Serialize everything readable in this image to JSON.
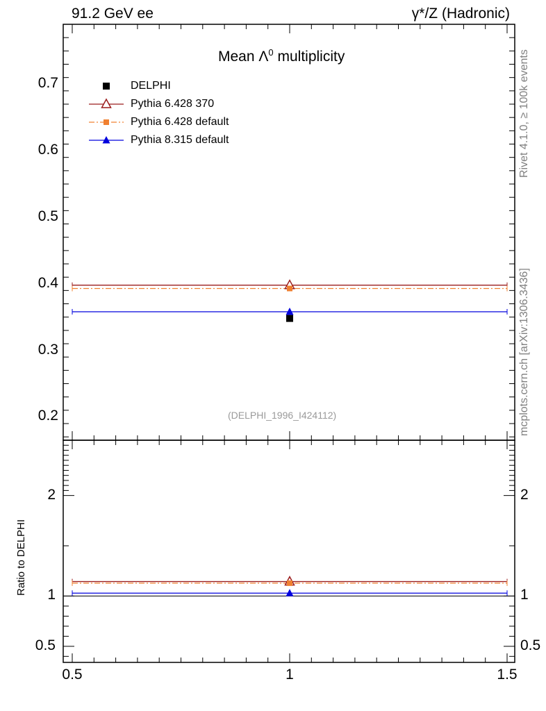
{
  "header": {
    "left": "91.2 GeV ee",
    "right": "γ*/Z (Hadronic)"
  },
  "side_labels": {
    "rivet": "Rivet 4.1.0, ≥ 100k events",
    "source": "mcplots.cern.ch [arXiv:1306.3436]"
  },
  "chart_data": {
    "type": "scatter",
    "title_prefix": "Mean Λ",
    "title_sup": "0",
    "title_suffix": " multiplicity",
    "reference_tag": "(DELPHI_1996_I424112)",
    "xlim": [
      0.5,
      1.5
    ],
    "x_ticks": [
      "0.5",
      "1",
      "1.5"
    ],
    "main": {
      "ylim": [
        0.165,
        0.79
      ],
      "y_ticks": [
        "0.2",
        "0.3",
        "0.4",
        "0.5",
        "0.6",
        "0.7"
      ],
      "data": {
        "name": "DELPHI",
        "x": 1.0,
        "y": 0.348,
        "xerr": [
          0.5,
          1.5
        ],
        "color": "#000000",
        "marker": "square"
      },
      "series": [
        {
          "name": "Pythia 6.428 370",
          "value": 0.398,
          "color": "#9b1c1c",
          "style": "solid",
          "marker": "triangle-open"
        },
        {
          "name": "Pythia 6.428 default",
          "value": 0.393,
          "color": "#f08030",
          "style": "dashdot",
          "marker": "square-small"
        },
        {
          "name": "Pythia 8.315 default",
          "value": 0.358,
          "color": "#0000dd",
          "style": "solid",
          "marker": "triangle"
        }
      ]
    },
    "ratio": {
      "ylabel": "Ratio to DELPHI",
      "ylim": [
        0.34,
        2.55
      ],
      "y_ticks": [
        "0.5",
        "1",
        "2"
      ],
      "reference": 1.0,
      "values": [
        1.144,
        1.128,
        1.029
      ]
    }
  },
  "colors": {
    "axis": "#000000",
    "side_text": "#808080",
    "ref_text": "#9a9a9a"
  }
}
